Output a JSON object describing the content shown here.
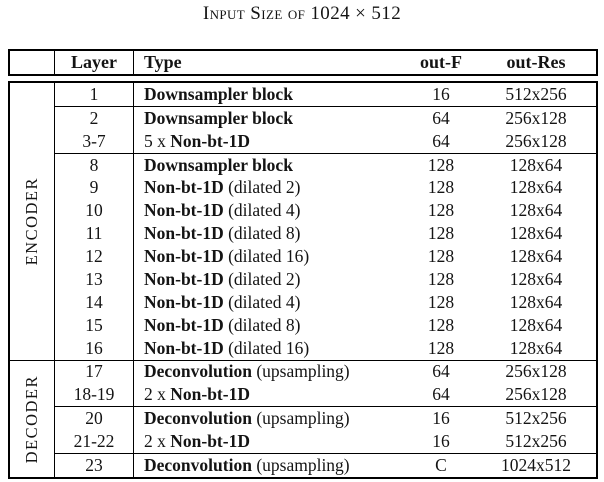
{
  "page": {
    "background": "#ffffff",
    "text_color": "#141414",
    "border_color": "#000000"
  },
  "title": "Input Size of 1024 × 512",
  "table": {
    "headers": {
      "layer": "Layer",
      "type": "Type",
      "out_f": "out-F",
      "out_res": "out-Res"
    },
    "side_labels": {
      "encoder": "ENCODER",
      "decoder": "DECODER"
    },
    "rows": [
      {
        "layer": "1",
        "type_prefix": "",
        "type_bold": "Downsampler block",
        "type_suffix": "",
        "out_f": "16",
        "out_res": "512x256",
        "sep": false,
        "section": "encoder"
      },
      {
        "layer": "2",
        "type_prefix": "",
        "type_bold": "Downsampler block",
        "type_suffix": "",
        "out_f": "64",
        "out_res": "256x128",
        "sep": true,
        "section": "encoder"
      },
      {
        "layer": "3-7",
        "type_prefix": "5 x ",
        "type_bold": "Non-bt-1D",
        "type_suffix": "",
        "out_f": "64",
        "out_res": "256x128",
        "sep": false,
        "section": "encoder"
      },
      {
        "layer": "8",
        "type_prefix": "",
        "type_bold": "Downsampler block",
        "type_suffix": "",
        "out_f": "128",
        "out_res": "128x64",
        "sep": true,
        "section": "encoder"
      },
      {
        "layer": "9",
        "type_prefix": "",
        "type_bold": "Non-bt-1D",
        "type_suffix": " (dilated 2)",
        "out_f": "128",
        "out_res": "128x64",
        "sep": false,
        "section": "encoder"
      },
      {
        "layer": "10",
        "type_prefix": "",
        "type_bold": "Non-bt-1D",
        "type_suffix": " (dilated 4)",
        "out_f": "128",
        "out_res": "128x64",
        "sep": false,
        "section": "encoder"
      },
      {
        "layer": "11",
        "type_prefix": "",
        "type_bold": "Non-bt-1D",
        "type_suffix": " (dilated 8)",
        "out_f": "128",
        "out_res": "128x64",
        "sep": false,
        "section": "encoder"
      },
      {
        "layer": "12",
        "type_prefix": "",
        "type_bold": "Non-bt-1D",
        "type_suffix": " (dilated 16)",
        "out_f": "128",
        "out_res": "128x64",
        "sep": false,
        "section": "encoder"
      },
      {
        "layer": "13",
        "type_prefix": "",
        "type_bold": "Non-bt-1D",
        "type_suffix": " (dilated 2)",
        "out_f": "128",
        "out_res": "128x64",
        "sep": false,
        "section": "encoder"
      },
      {
        "layer": "14",
        "type_prefix": "",
        "type_bold": "Non-bt-1D",
        "type_suffix": " (dilated 4)",
        "out_f": "128",
        "out_res": "128x64",
        "sep": false,
        "section": "encoder"
      },
      {
        "layer": "15",
        "type_prefix": "",
        "type_bold": "Non-bt-1D",
        "type_suffix": " (dilated 8)",
        "out_f": "128",
        "out_res": "128x64",
        "sep": false,
        "section": "encoder"
      },
      {
        "layer": "16",
        "type_prefix": "",
        "type_bold": "Non-bt-1D",
        "type_suffix": " (dilated 16)",
        "out_f": "128",
        "out_res": "128x64",
        "sep": false,
        "section": "encoder"
      },
      {
        "layer": "17",
        "type_prefix": "",
        "type_bold": "Deconvolution",
        "type_suffix": " (upsampling)",
        "out_f": "64",
        "out_res": "256x128",
        "sep": true,
        "section": "decoder"
      },
      {
        "layer": "18-19",
        "type_prefix": "2 x ",
        "type_bold": "Non-bt-1D",
        "type_suffix": "",
        "out_f": "64",
        "out_res": "256x128",
        "sep": false,
        "section": "decoder"
      },
      {
        "layer": "20",
        "type_prefix": "",
        "type_bold": "Deconvolution",
        "type_suffix": " (upsampling)",
        "out_f": "16",
        "out_res": "512x256",
        "sep": true,
        "section": "decoder"
      },
      {
        "layer": "21-22",
        "type_prefix": "2 x ",
        "type_bold": "Non-bt-1D",
        "type_suffix": "",
        "out_f": "16",
        "out_res": "512x256",
        "sep": false,
        "section": "decoder"
      },
      {
        "layer": "23",
        "type_prefix": "",
        "type_bold": "Deconvolution",
        "type_suffix": " (upsampling)",
        "out_f": "C",
        "out_res": "1024x512",
        "sep": true,
        "section": "decoder"
      }
    ]
  }
}
